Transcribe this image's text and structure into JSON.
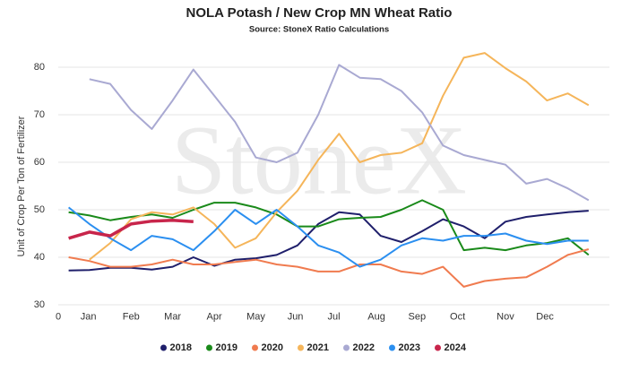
{
  "chart_data": {
    "type": "line",
    "title": "NOLA Potash / New Crop MN Wheat Ratio",
    "subtitle": "Source: StoneX Ratio Calculations",
    "watermark": "StoneX",
    "y_label": "Unit of Crop Per Ton of Fertilizer",
    "x": [
      1,
      3,
      5,
      7,
      9,
      11,
      13,
      15,
      17,
      19,
      21,
      23,
      25,
      27,
      29,
      31,
      33,
      35,
      37,
      39,
      41,
      43,
      45,
      47,
      49,
      51
    ],
    "xlim": [
      0,
      53
    ],
    "xticks": [
      {
        "value": 0,
        "label": "0"
      },
      {
        "value": 2.9,
        "label": "Jan"
      },
      {
        "value": 7,
        "label": "Feb"
      },
      {
        "value": 11,
        "label": "Mar"
      },
      {
        "value": 15,
        "label": "Apr"
      },
      {
        "value": 19,
        "label": "May"
      },
      {
        "value": 22.8,
        "label": "Jun"
      },
      {
        "value": 26.5,
        "label": "Jul"
      },
      {
        "value": 30.6,
        "label": "Aug"
      },
      {
        "value": 34.5,
        "label": "Sep"
      },
      {
        "value": 38.4,
        "label": "Oct"
      },
      {
        "value": 43,
        "label": "Nov"
      },
      {
        "value": 46.8,
        "label": "Dec"
      }
    ],
    "ylim": [
      28,
      85
    ],
    "yticks": [
      30,
      40,
      50,
      60,
      70,
      80
    ],
    "grid": true,
    "legend": "bottom",
    "series": [
      {
        "name": "2018",
        "color": "#1f1f6b",
        "values": [
          37.2,
          37.3,
          37.8,
          37.8,
          37.4,
          38.0,
          40.0,
          38.2,
          39.5,
          39.8,
          40.5,
          42.5,
          47.0,
          49.5,
          49.0,
          44.5,
          43.2,
          45.5,
          48.0,
          46.5,
          44.0,
          47.5,
          48.5,
          49.0,
          49.5,
          49.8
        ]
      },
      {
        "name": "2019",
        "color": "#1a8a1a",
        "values": [
          49.5,
          48.8,
          47.8,
          48.5,
          49.0,
          48.3,
          50.0,
          51.5,
          51.5,
          50.5,
          49.0,
          46.5,
          46.5,
          48.0,
          48.3,
          48.5,
          50.0,
          52.0,
          50.0,
          41.5,
          42.0,
          41.5,
          42.5,
          43.0,
          44.0,
          40.5
        ]
      },
      {
        "name": "2020",
        "color": "#f07b4f",
        "values": [
          40.0,
          39.2,
          38.0,
          38.0,
          38.5,
          39.5,
          38.5,
          38.5,
          39.0,
          39.5,
          38.5,
          38.0,
          37.0,
          37.0,
          38.5,
          38.5,
          37.0,
          36.5,
          38.0,
          33.8,
          35.0,
          35.5,
          35.8,
          38.0,
          40.5,
          41.7
        ]
      },
      {
        "name": "2021",
        "color": "#f5b55a",
        "values": [
          null,
          39.5,
          43.0,
          48.0,
          49.5,
          49.0,
          50.5,
          47.0,
          42.0,
          44.0,
          49.5,
          54.0,
          60.5,
          66.0,
          60.0,
          61.5,
          62.0,
          64.0,
          74.0,
          82.0,
          83.0,
          79.8,
          77.0,
          73.0,
          74.5,
          72.0
        ]
      },
      {
        "name": "2022",
        "color": "#a9a9d2",
        "values": [
          null,
          77.5,
          76.5,
          71.0,
          67.0,
          73.0,
          79.5,
          74.0,
          68.5,
          61.0,
          60.0,
          62.0,
          70.0,
          80.5,
          77.8,
          77.5,
          75.0,
          70.5,
          63.5,
          61.5,
          60.5,
          59.5,
          55.5,
          56.5,
          54.5,
          52.0
        ]
      },
      {
        "name": "2023",
        "color": "#2b8ff0",
        "values": [
          50.5,
          47.0,
          44.0,
          41.5,
          44.5,
          43.8,
          41.5,
          45.5,
          50.0,
          47.0,
          50.0,
          46.5,
          42.5,
          41.0,
          38.0,
          39.5,
          42.5,
          44.0,
          43.5,
          44.5,
          44.5,
          45.0,
          43.5,
          42.8,
          43.5,
          43.5
        ]
      },
      {
        "name": "2024",
        "color": "#c8254b",
        "values": [
          44.0,
          45.3,
          44.5,
          47.0,
          47.6,
          47.8,
          47.5,
          null,
          null,
          null,
          null,
          null,
          null,
          null,
          null,
          null,
          null,
          null,
          null,
          null,
          null,
          null,
          null,
          null,
          null,
          null
        ]
      }
    ]
  }
}
